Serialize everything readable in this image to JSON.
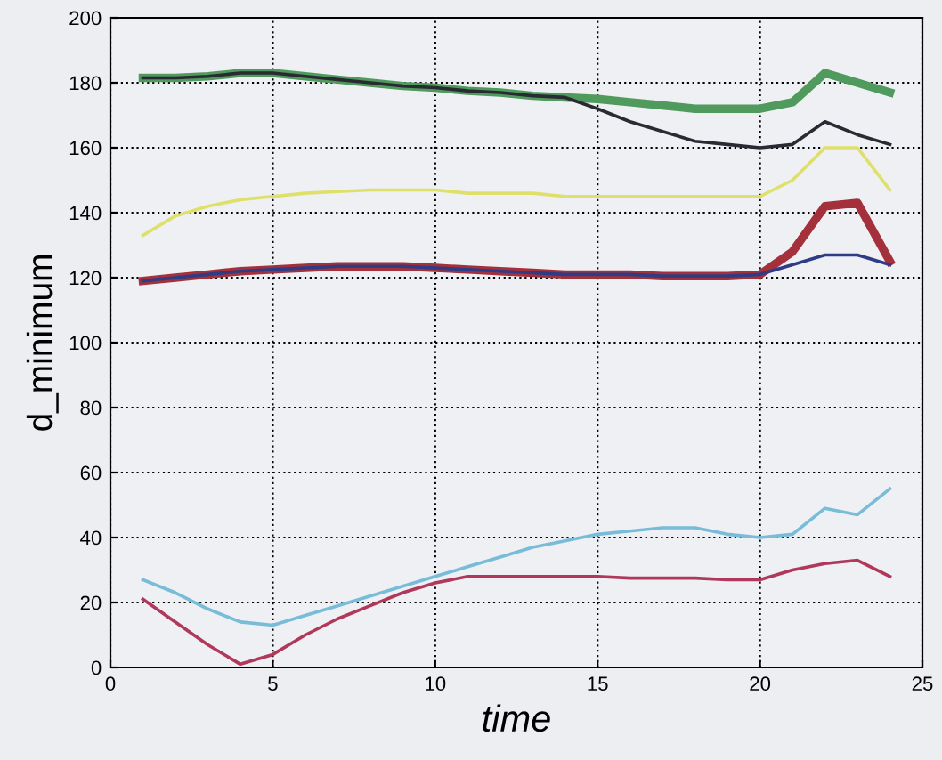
{
  "chart_data": {
    "type": "line",
    "xlabel": "time",
    "ylabel": "d_minimum",
    "x": [
      1,
      2,
      3,
      4,
      5,
      6,
      7,
      8,
      9,
      10,
      11,
      12,
      13,
      14,
      15,
      16,
      17,
      18,
      19,
      20,
      21,
      22,
      23,
      24
    ],
    "xlim": [
      0,
      25
    ],
    "xticks": [
      0,
      5,
      10,
      15,
      20,
      25
    ],
    "ylim": [
      0,
      200
    ],
    "yticks": [
      0,
      20,
      40,
      60,
      80,
      100,
      120,
      140,
      160,
      180,
      200
    ],
    "grid": true,
    "legend": false,
    "line_style": "solid",
    "marker": "none",
    "series": [
      {
        "color": "#4f9a5c",
        "values": [
          181.5,
          181.5,
          182,
          183,
          183,
          182,
          181,
          180,
          179,
          178.5,
          177.5,
          177,
          176,
          175.5,
          175,
          174,
          173,
          172,
          172,
          172,
          174,
          183,
          180,
          177
        ]
      },
      {
        "color": "#2a2a33",
        "values": [
          181.5,
          181.5,
          182,
          183,
          183,
          182,
          181,
          180,
          179,
          178.5,
          177.5,
          177,
          176,
          175.5,
          172,
          168,
          165,
          162,
          161,
          160,
          161,
          168,
          164,
          161
        ]
      },
      {
        "color": "#dfe06a",
        "values": [
          133,
          139,
          142,
          144,
          145,
          146,
          146.5,
          147,
          147,
          147,
          146,
          146,
          146,
          145,
          145,
          145,
          145,
          145,
          145,
          145,
          150,
          160,
          160,
          147
        ]
      },
      {
        "color": "#a3303a",
        "values": [
          119,
          120,
          121,
          122,
          122.5,
          123,
          123.5,
          123.5,
          123.5,
          123,
          122.5,
          122,
          121.5,
          121,
          121,
          121,
          120.5,
          120.5,
          120.5,
          121,
          128,
          142,
          143,
          125
        ]
      },
      {
        "color": "#2e3c86",
        "values": [
          119,
          120,
          121,
          122,
          122.5,
          123,
          123.5,
          123.5,
          123.5,
          123,
          122.5,
          122,
          121.5,
          121,
          121,
          121,
          120.5,
          120.5,
          120.5,
          121,
          124,
          127,
          127,
          124
        ]
      },
      {
        "color": "#78bcd8",
        "values": [
          27,
          23,
          18,
          14,
          13,
          16,
          19,
          22,
          25,
          28,
          31,
          34,
          37,
          39,
          41,
          42,
          43,
          43,
          41,
          40,
          41,
          49,
          47,
          55
        ]
      },
      {
        "color": "#b0385a",
        "values": [
          21,
          14,
          7,
          1,
          4,
          10,
          15,
          19,
          23,
          26,
          28,
          28,
          28,
          28,
          28,
          27.5,
          27.5,
          27.5,
          27,
          27,
          30,
          32,
          33,
          28
        ]
      }
    ]
  }
}
